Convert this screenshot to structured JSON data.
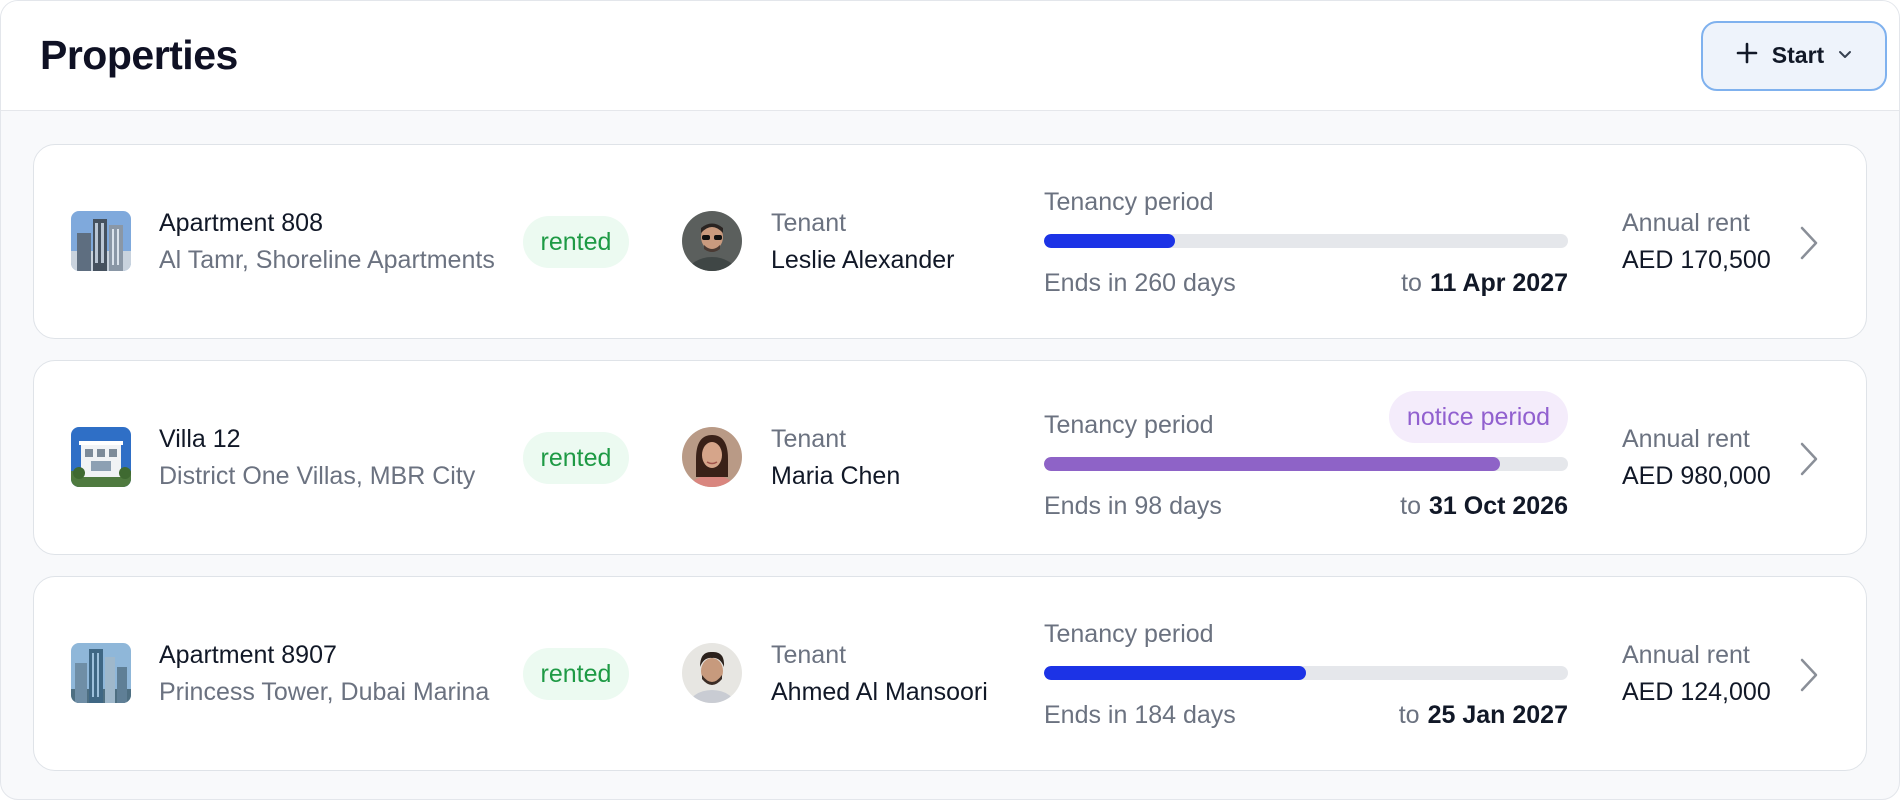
{
  "header": {
    "title": "Properties",
    "start_button": {
      "label": "Start",
      "icons": [
        "plus-icon",
        "chevron-down-icon"
      ]
    }
  },
  "labels": {
    "tenant": "Tenant",
    "tenancy_period": "Tenancy period",
    "annual_rent": "Annual rent",
    "to": "to"
  },
  "colors": {
    "progress_active": "#1c33e6",
    "progress_notice": "#8e63c7",
    "status_rented_text": "#1e9a45",
    "status_rented_bg": "#ecfaf1",
    "notice_text": "#9160cf",
    "notice_bg": "#f4ecfb",
    "primary_button_border": "#7fb1ee"
  },
  "properties": [
    {
      "name": "Apartment 808",
      "address": "Al Tamr, Shoreline Apartments",
      "status": "rented",
      "tenant_name": "Leslie Alexander",
      "ends_in": "Ends in 260 days",
      "end_date": "11 Apr 2027",
      "progress": 0.25,
      "notice": "",
      "annual_rent": "AED 170,500"
    },
    {
      "name": "Villa 12",
      "address": "District One Villas, MBR City",
      "status": "rented",
      "tenant_name": "Maria Chen",
      "ends_in": "Ends in 98 days",
      "end_date": "31 Oct 2026",
      "progress": 0.87,
      "notice": "notice period",
      "annual_rent": "AED 980,000"
    },
    {
      "name": "Apartment 8907",
      "address": "Princess Tower, Dubai Marina",
      "status": "rented",
      "tenant_name": "Ahmed Al Mansoori",
      "ends_in": "Ends in 184 days",
      "end_date": "25 Jan 2027",
      "progress": 0.5,
      "notice": "",
      "annual_rent": "AED 124,000"
    }
  ]
}
